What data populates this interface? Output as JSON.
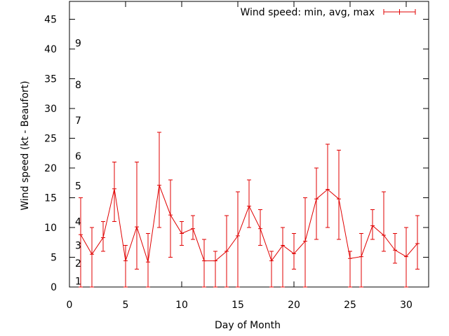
{
  "chart_data": {
    "type": "line",
    "title": "",
    "xlabel": "Day of Month",
    "ylabel": "Wind speed (kt - Beaufort)",
    "xlim": [
      0,
      32
    ],
    "ylim": [
      0,
      48
    ],
    "xticks": [
      0,
      5,
      10,
      15,
      20,
      25,
      30
    ],
    "yticks": [
      0,
      5,
      10,
      15,
      20,
      25,
      30,
      35,
      40,
      45
    ],
    "grid": false,
    "legend_position": "top-right",
    "series": [
      {
        "name": "Wind speed: min, avg, max",
        "color": "#e00000",
        "points": [
          {
            "x": 1,
            "avg": 8.8,
            "min": 0,
            "max": 15
          },
          {
            "x": 2,
            "avg": 5.5,
            "min": 0,
            "max": 10
          },
          {
            "x": 3,
            "avg": 8.3,
            "min": 6,
            "max": 11
          },
          {
            "x": 4,
            "avg": 16.5,
            "min": 11,
            "max": 21
          },
          {
            "x": 5,
            "avg": 4.4,
            "min": 0,
            "max": 7
          },
          {
            "x": 6,
            "avg": 10.1,
            "min": 3,
            "max": 21
          },
          {
            "x": 7,
            "avg": 4.2,
            "min": 0,
            "max": 9
          },
          {
            "x": 8,
            "avg": 17.1,
            "min": 10,
            "max": 26
          },
          {
            "x": 9,
            "avg": 12.1,
            "min": 5,
            "max": 18
          },
          {
            "x": 10,
            "avg": 9.0,
            "min": 7,
            "max": 11
          },
          {
            "x": 11,
            "avg": 9.8,
            "min": 8,
            "max": 12
          },
          {
            "x": 12,
            "avg": 4.4,
            "min": 0,
            "max": 8
          },
          {
            "x": 13,
            "avg": 4.4,
            "min": 0,
            "max": 6
          },
          {
            "x": 14,
            "avg": 6.0,
            "min": 0,
            "max": 12
          },
          {
            "x": 15,
            "avg": 8.6,
            "min": 0,
            "max": 16
          },
          {
            "x": 16,
            "avg": 13.6,
            "min": 10,
            "max": 18
          },
          {
            "x": 17,
            "avg": 9.8,
            "min": 7,
            "max": 13
          },
          {
            "x": 18,
            "avg": 4.4,
            "min": 0,
            "max": 6
          },
          {
            "x": 19,
            "avg": 7.0,
            "min": 0,
            "max": 10
          },
          {
            "x": 20,
            "avg": 5.6,
            "min": 3,
            "max": 9
          },
          {
            "x": 21,
            "avg": 7.7,
            "min": 0,
            "max": 15
          },
          {
            "x": 22,
            "avg": 14.8,
            "min": 8,
            "max": 20
          },
          {
            "x": 23,
            "avg": 16.4,
            "min": 10,
            "max": 24
          },
          {
            "x": 24,
            "avg": 14.8,
            "min": 8,
            "max": 23
          },
          {
            "x": 25,
            "avg": 4.8,
            "min": 0,
            "max": 6
          },
          {
            "x": 26,
            "avg": 5.1,
            "min": 0,
            "max": 9
          },
          {
            "x": 27,
            "avg": 10.3,
            "min": 8,
            "max": 13
          },
          {
            "x": 28,
            "avg": 8.7,
            "min": 6,
            "max": 16
          },
          {
            "x": 29,
            "avg": 6.2,
            "min": 4,
            "max": 9
          },
          {
            "x": 30,
            "avg": 5.1,
            "min": 0,
            "max": 10
          },
          {
            "x": 31,
            "avg": 7.3,
            "min": 3,
            "max": 12
          }
        ]
      }
    ],
    "beaufort_labels": [
      {
        "label": "1",
        "value": 1
      },
      {
        "label": "2",
        "value": 4
      },
      {
        "label": "3",
        "value": 7
      },
      {
        "label": "4",
        "value": 11
      },
      {
        "label": "5",
        "value": 17
      },
      {
        "label": "6",
        "value": 22
      },
      {
        "label": "7",
        "value": 28
      },
      {
        "label": "8",
        "value": 34
      },
      {
        "label": "9",
        "value": 41
      }
    ]
  }
}
